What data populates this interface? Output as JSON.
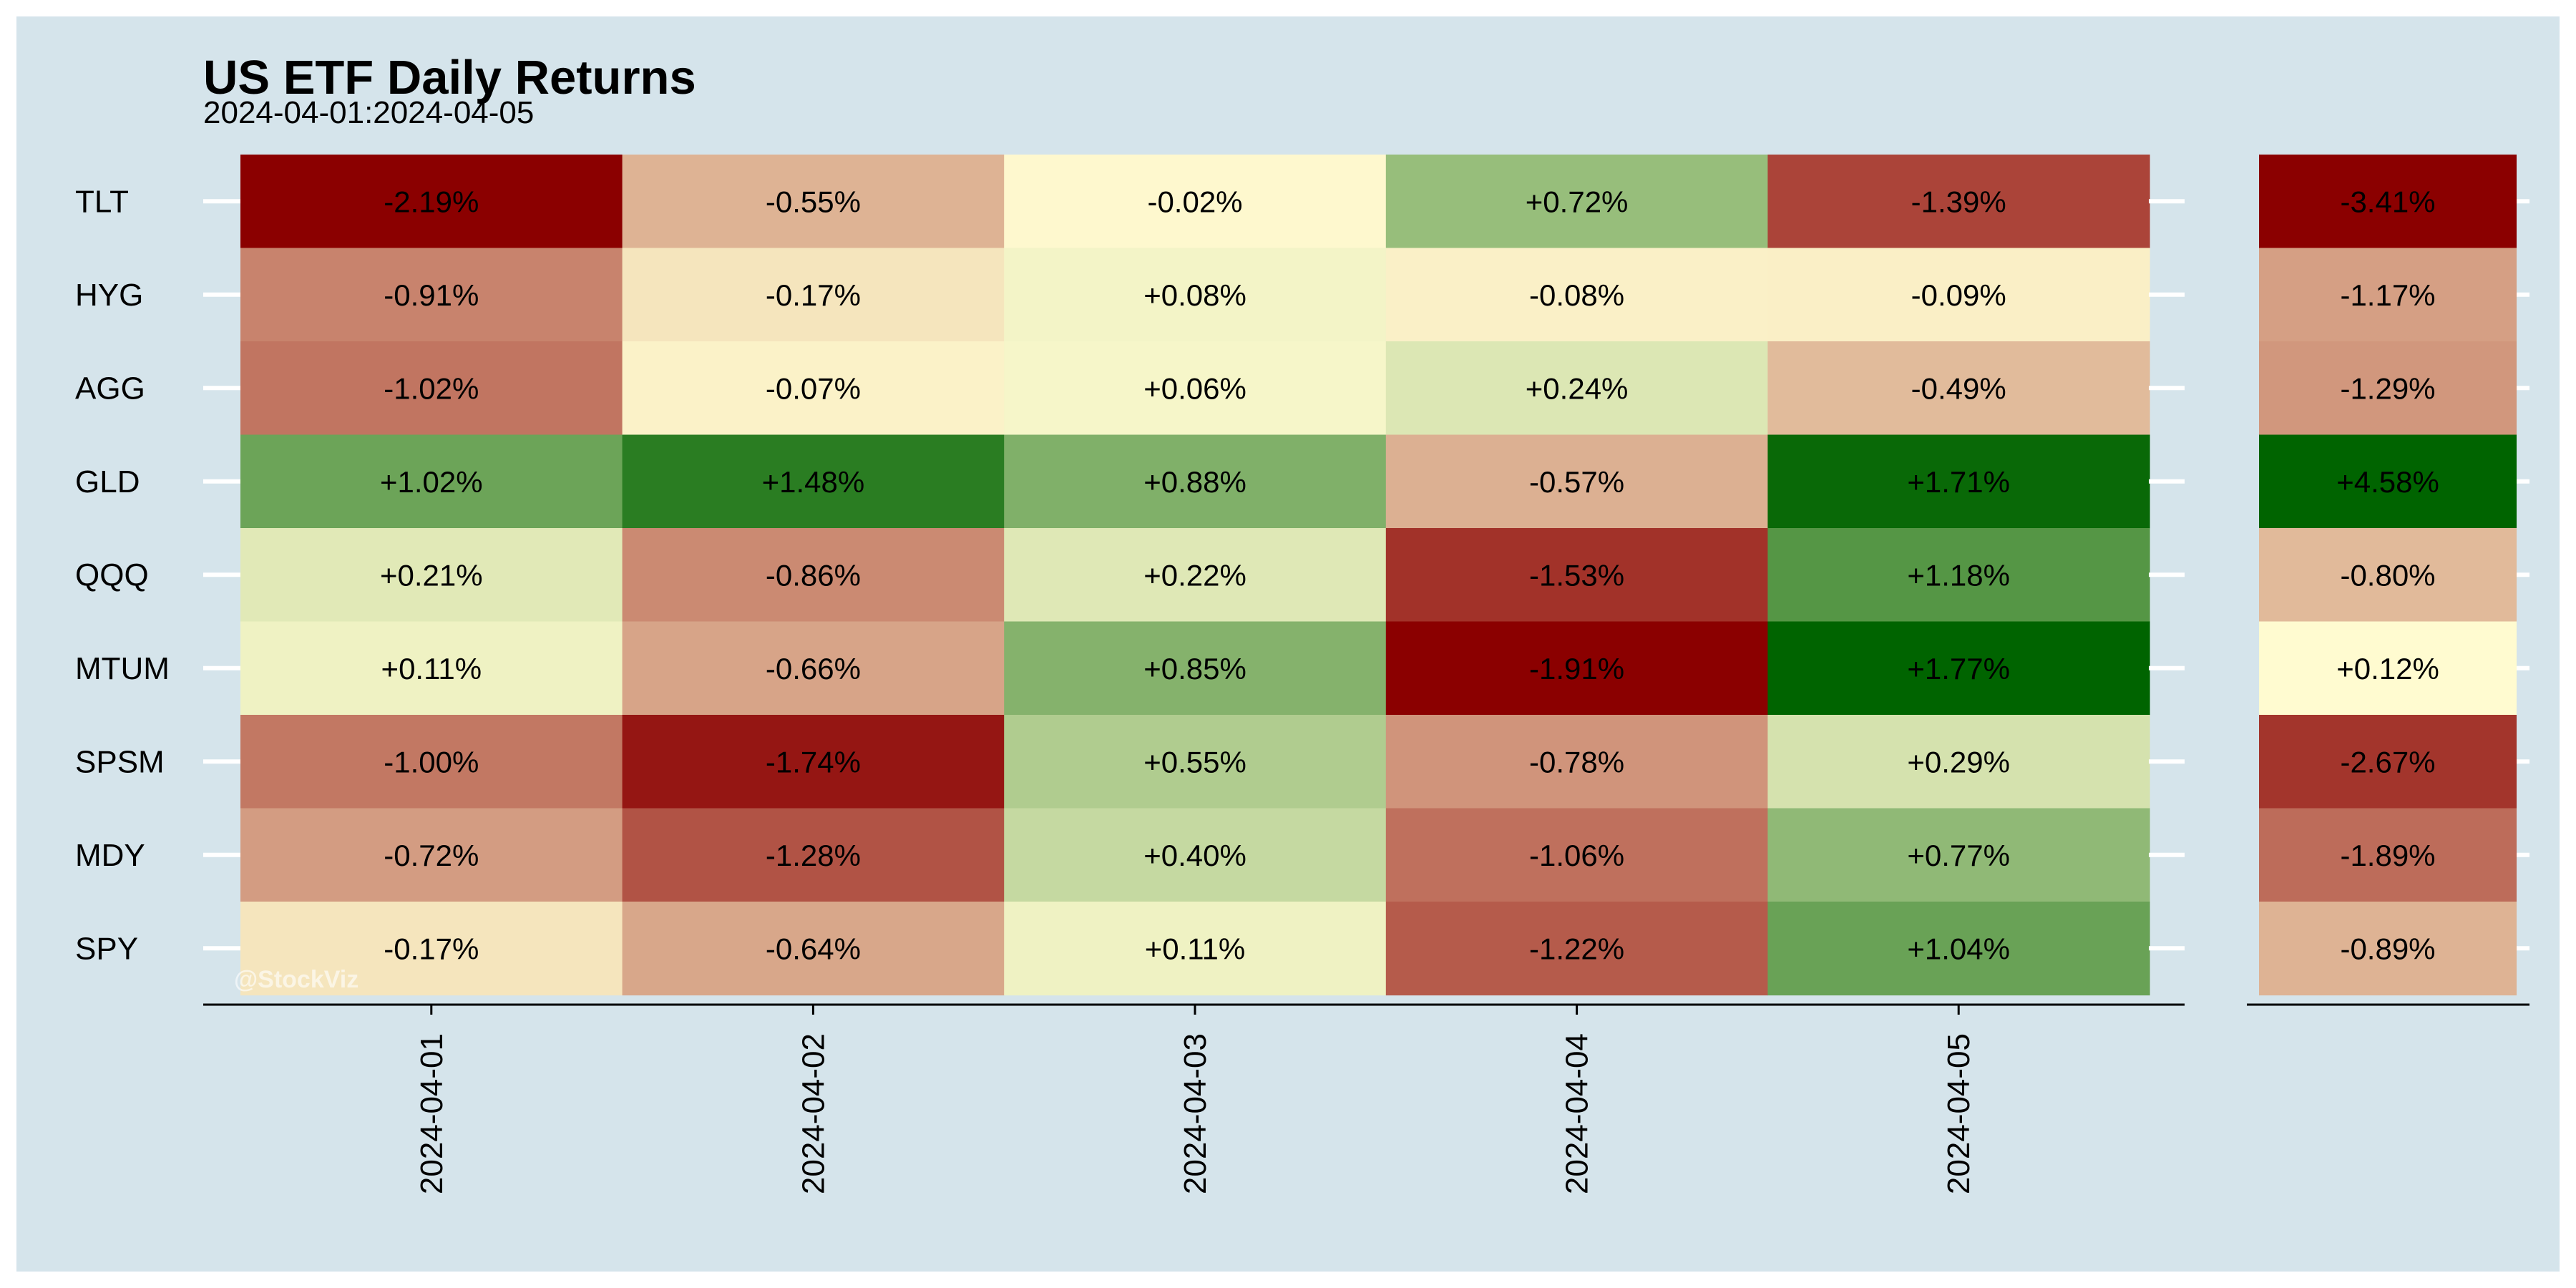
{
  "chart_data": {
    "type": "heatmap",
    "title": "US ETF Daily Returns",
    "subtitle": "2024-04-01:2024-04-05",
    "watermark": "@StockViz",
    "rows": [
      "TLT",
      "HYG",
      "AGG",
      "GLD",
      "QQQ",
      "MTUM",
      "SPSM",
      "MDY",
      "SPY"
    ],
    "columns": [
      "2024-04-01",
      "2024-04-02",
      "2024-04-03",
      "2024-04-04",
      "2024-04-05"
    ],
    "values": [
      [
        -2.19,
        -0.55,
        -0.02,
        0.72,
        -1.39
      ],
      [
        -0.91,
        -0.17,
        0.08,
        -0.08,
        -0.09
      ],
      [
        -1.02,
        -0.07,
        0.06,
        0.24,
        -0.49
      ],
      [
        1.02,
        1.48,
        0.88,
        -0.57,
        1.71
      ],
      [
        0.21,
        -0.86,
        0.22,
        -1.53,
        1.18
      ],
      [
        0.11,
        -0.66,
        0.85,
        -1.91,
        1.77
      ],
      [
        -1.0,
        -1.74,
        0.55,
        -0.78,
        0.29
      ],
      [
        -0.72,
        -1.28,
        0.4,
        -1.06,
        0.77
      ],
      [
        -0.17,
        -0.64,
        0.11,
        -1.22,
        1.04
      ]
    ],
    "labels": [
      [
        "-2.19%",
        "-0.55%",
        "-0.02%",
        "+0.72%",
        "-1.39%"
      ],
      [
        "-0.91%",
        "-0.17%",
        "+0.08%",
        "-0.08%",
        "-0.09%"
      ],
      [
        "-1.02%",
        "-0.07%",
        "+0.06%",
        "+0.24%",
        "-0.49%"
      ],
      [
        "+1.02%",
        "+1.48%",
        "+0.88%",
        "-0.57%",
        "+1.71%"
      ],
      [
        "+0.21%",
        "-0.86%",
        "+0.22%",
        "-1.53%",
        "+1.18%"
      ],
      [
        "+0.11%",
        "-0.66%",
        "+0.85%",
        "-1.91%",
        "+1.77%"
      ],
      [
        "-1.00%",
        "-1.74%",
        "+0.55%",
        "-0.78%",
        "+0.29%"
      ],
      [
        "-0.72%",
        "-1.28%",
        "+0.40%",
        "-1.06%",
        "+0.77%"
      ],
      [
        "-0.17%",
        "-0.64%",
        "+0.11%",
        "-1.22%",
        "+1.04%"
      ]
    ],
    "totals": [
      -3.41,
      -1.17,
      -1.29,
      4.58,
      -0.8,
      0.12,
      -2.67,
      -1.89,
      -0.89
    ],
    "total_labels": [
      "-3.41%",
      "-1.17%",
      "-1.29%",
      "+4.58%",
      "-0.80%",
      "+0.12%",
      "-2.67%",
      "-1.89%",
      "-0.89%"
    ],
    "daily_scale": {
      "min": -1.91,
      "max": 1.77
    },
    "total_scale": {
      "min": -3.41,
      "max": 4.58,
      "mid": 0.12
    },
    "palette": {
      "low": "#8b0000",
      "mid": "#fffbd0",
      "high": "#006400"
    },
    "colors": {
      "background": "#d5e4eb",
      "axis": "#000000",
      "tick": "#ffffff",
      "watermark": "#ffffff"
    }
  }
}
